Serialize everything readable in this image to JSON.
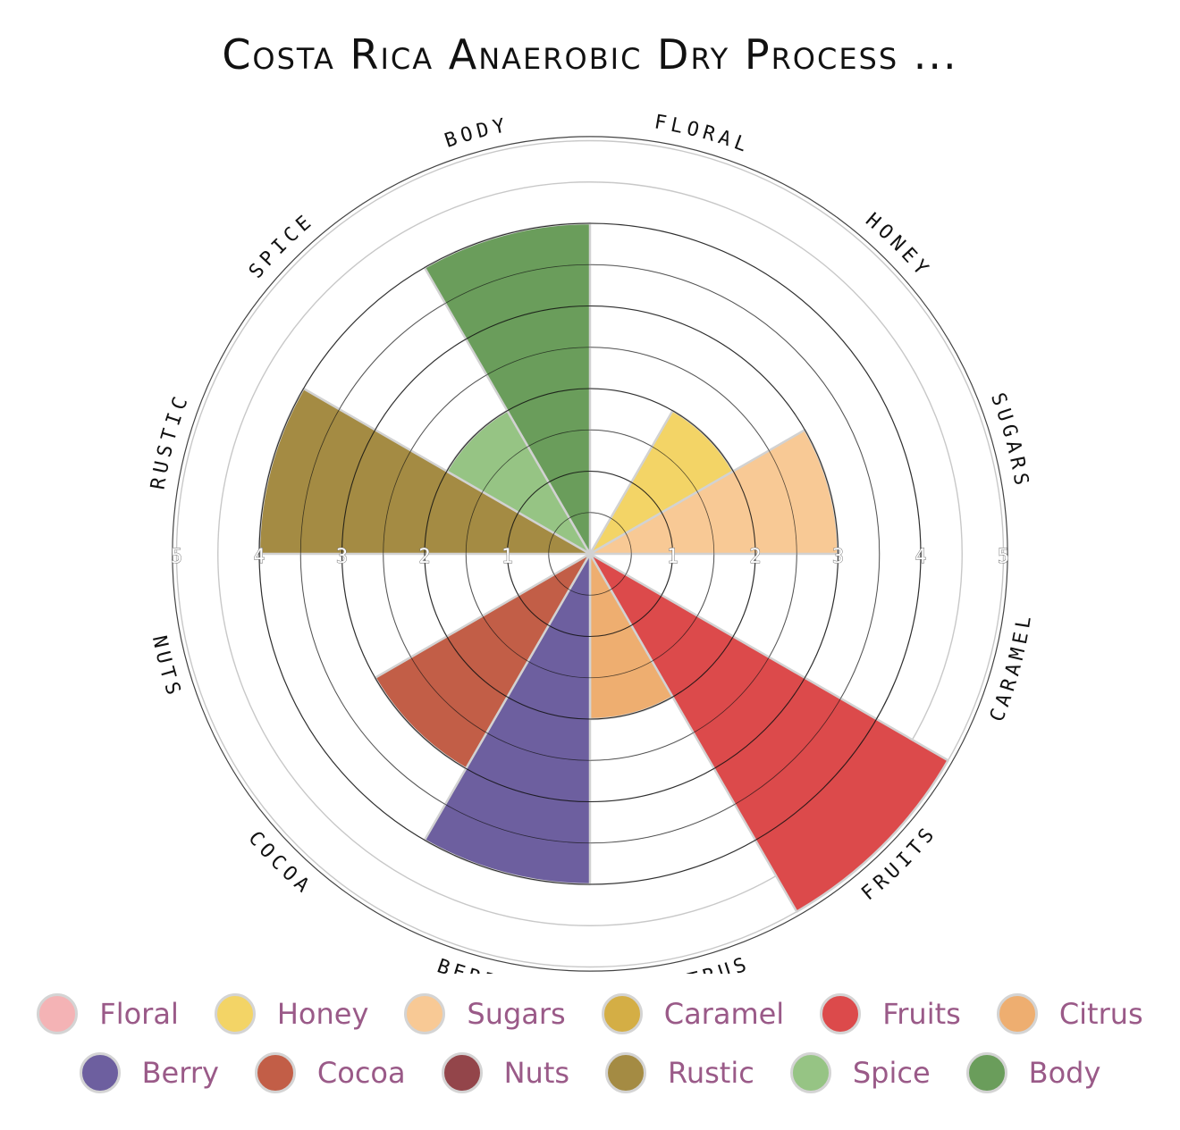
{
  "chart_data": {
    "type": "polar-area",
    "title": "Costa Rica Anaerobic Dry Process ...",
    "rmax": 5,
    "ticks": [
      1,
      2,
      3,
      4,
      5
    ],
    "categories": [
      "Floral",
      "Honey",
      "Sugars",
      "Caramel",
      "Fruits",
      "Citrus",
      "Berry",
      "Cocoa",
      "Nuts",
      "Rustic",
      "Spice",
      "Body"
    ],
    "outer_labels": [
      "FLORAL",
      "HONEY",
      "SUGARS",
      "CARAMEL",
      "FRUITS",
      "CITRUS",
      "BERRY",
      "COCOA",
      "NUTS",
      "RUSTIC",
      "SPICE",
      "BODY"
    ],
    "values": [
      0,
      2,
      3,
      0,
      5,
      2,
      4,
      3,
      0,
      4,
      2,
      4
    ],
    "colors": [
      "#f4b3b5",
      "#f3d466",
      "#f8c995",
      "#d4ae45",
      "#dc4a4b",
      "#eeae70",
      "#6d5f9f",
      "#c25e47",
      "#93454a",
      "#a48b43",
      "#96c484",
      "#6a9d5b"
    ]
  },
  "legend": {
    "rows": [
      [
        {
          "label": "Floral",
          "color": "#f4b3b5"
        },
        {
          "label": "Honey",
          "color": "#f3d466"
        },
        {
          "label": "Sugars",
          "color": "#f8c995"
        },
        {
          "label": "Caramel",
          "color": "#d4ae45"
        },
        {
          "label": "Fruits",
          "color": "#dc4a4b"
        },
        {
          "label": "Citrus",
          "color": "#eeae70"
        }
      ],
      [
        {
          "label": "Berry",
          "color": "#6d5f9f"
        },
        {
          "label": "Cocoa",
          "color": "#c25e47"
        },
        {
          "label": "Nuts",
          "color": "#93454a"
        },
        {
          "label": "Rustic",
          "color": "#a48b43"
        },
        {
          "label": "Spice",
          "color": "#96c484"
        },
        {
          "label": "Body",
          "color": "#6a9d5b"
        }
      ]
    ]
  }
}
